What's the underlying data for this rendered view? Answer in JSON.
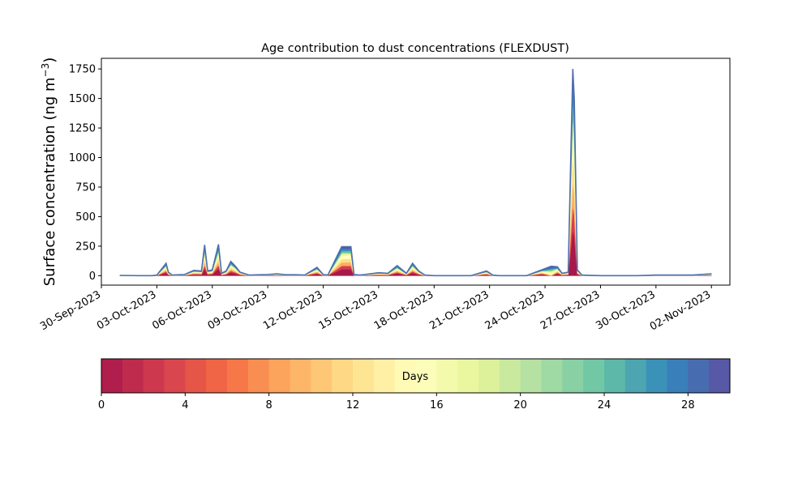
{
  "chart_data": {
    "type": "area",
    "title": "Age contribution to dust concentrations (FLEXDUST)",
    "ylabel": "Surface concentration (ng m",
    "ylabel_exp": "−3",
    "ylabel_close": ")",
    "xlabel": "",
    "ylim": [
      -80,
      1840
    ],
    "yticks": [
      0,
      250,
      500,
      750,
      1000,
      1250,
      1500,
      1750
    ],
    "xlim": [
      "2023-09-30",
      "2023-11-03"
    ],
    "xticks": [
      "30-Sep-2023",
      "03-Oct-2023",
      "06-Oct-2023",
      "09-Oct-2023",
      "12-Oct-2023",
      "15-Oct-2023",
      "18-Oct-2023",
      "21-Oct-2023",
      "24-Oct-2023",
      "27-Oct-2023",
      "30-Oct-2023",
      "02-Nov-2023"
    ],
    "xtick_dates": [
      "2023-09-30",
      "2023-10-03",
      "2023-10-06",
      "2023-10-09",
      "2023-10-12",
      "2023-10-15",
      "2023-10-18",
      "2023-10-21",
      "2023-10-24",
      "2023-10-27",
      "2023-10-30",
      "2023-11-02"
    ],
    "grid": false,
    "legend": "none",
    "series": [
      {
        "x": [
          "2023-10-01 00:00",
          "2023-10-02 00:00",
          "2023-10-02 18:00",
          "2023-10-03 00:00",
          "2023-10-03 12:00",
          "2023-10-03 15:00",
          "2023-10-03 20:00",
          "2023-10-04 12:00",
          "2023-10-05 00:00",
          "2023-10-05 10:00",
          "2023-10-05 14:00",
          "2023-10-05 18:00",
          "2023-10-06 00:00",
          "2023-10-06 08:00",
          "2023-10-06 12:00",
          "2023-10-06 18:00",
          "2023-10-07 00:00",
          "2023-10-07 06:00",
          "2023-10-07 12:00",
          "2023-10-08 00:00",
          "2023-10-09 00:00",
          "2023-10-09 12:00",
          "2023-10-10 00:00",
          "2023-10-10 12:00",
          "2023-10-11 00:00",
          "2023-10-11 16:00",
          "2023-10-12 00:00",
          "2023-10-12 06:00",
          "2023-10-13 00:00",
          "2023-10-13 12:00",
          "2023-10-13 16:00",
          "2023-10-14 00:00",
          "2023-10-14 06:00",
          "2023-10-15 00:00",
          "2023-10-15 12:00",
          "2023-10-16 00:00",
          "2023-10-16 12:00",
          "2023-10-16 20:00",
          "2023-10-17 04:00",
          "2023-10-17 12:00",
          "2023-10-18 00:00",
          "2023-10-19 00:00",
          "2023-10-20 00:00",
          "2023-10-20 20:00",
          "2023-10-21 04:00",
          "2023-10-21 12:00",
          "2023-10-22 00:00",
          "2023-10-23 00:00",
          "2023-10-23 20:00",
          "2023-10-24 08:00",
          "2023-10-24 16:00",
          "2023-10-24 22:00",
          "2023-10-25 06:00",
          "2023-10-25 12:00",
          "2023-10-25 14:00",
          "2023-10-25 18:00",
          "2023-10-26 00:00",
          "2023-10-27 00:00",
          "2023-10-28 00:00",
          "2023-10-29 00:00",
          "2023-10-30 00:00",
          "2023-10-31 00:00",
          "2023-11-01 00:00",
          "2023-11-02 00:00"
        ],
        "y": [
          2,
          0,
          0,
          5,
          105,
          30,
          5,
          10,
          45,
          40,
          260,
          40,
          50,
          265,
          20,
          40,
          120,
          80,
          30,
          5,
          10,
          15,
          8,
          8,
          5,
          70,
          10,
          5,
          245,
          245,
          10,
          5,
          10,
          25,
          20,
          85,
          20,
          105,
          40,
          5,
          0,
          0,
          0,
          40,
          5,
          0,
          0,
          0,
          50,
          80,
          75,
          20,
          30,
          1750,
          1500,
          50,
          5,
          0,
          0,
          0,
          5,
          5,
          5,
          15
        ],
        "layers": [
          0.22,
          0.12,
          0.12,
          0.12,
          0.12,
          0.08,
          0.08,
          0.08,
          0.06
        ],
        "special_layers": {
          "2023-10-24 08:00": [
            0.0,
            0.0,
            0.04,
            0.08,
            0.18,
            0.2,
            0.2,
            0.15,
            0.15
          ]
        }
      }
    ],
    "colors": [
      "#a7184b",
      "#d53e4f",
      "#f46d43",
      "#fdae61",
      "#fee08b",
      "#ffffbf",
      "#e6f598",
      "#abdda4",
      "#66c2a5",
      "#3288bd",
      "#5e4fa2"
    ]
  },
  "colorbar": {
    "label": "Days",
    "ticks": [
      "0",
      "4",
      "8",
      "12",
      "16",
      "20",
      "24",
      "28"
    ],
    "tick_values": [
      0,
      4,
      8,
      12,
      16,
      20,
      24,
      28
    ],
    "range": [
      0,
      30
    ],
    "levels": 30
  }
}
